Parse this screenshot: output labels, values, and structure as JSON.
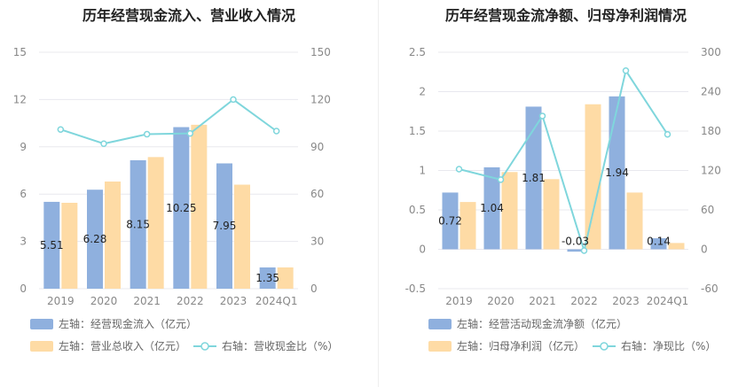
{
  "colors": {
    "bar_blue": "#8fb0de",
    "bar_orange": "#fedba5",
    "line_cyan": "#7fd6dc",
    "grid": "#e8e8ee",
    "axis_text": "#888888"
  },
  "chart_data": [
    {
      "type": "bar",
      "title": "历年经营现金流入、营业收入情况",
      "categories": [
        "2019",
        "2020",
        "2021",
        "2022",
        "2023",
        "2024Q1"
      ],
      "left_axis": {
        "ylim": [
          0,
          15
        ],
        "ticks": [
          "0",
          "3",
          "6",
          "9",
          "12",
          "15"
        ]
      },
      "right_axis": {
        "ylim": [
          0,
          150
        ],
        "ticks": [
          "0",
          "30",
          "60",
          "90",
          "120",
          "150"
        ]
      },
      "series": [
        {
          "name": "左轴：经营现金流入（亿元）",
          "type": "bar",
          "axis": "left",
          "values": [
            5.51,
            6.28,
            8.15,
            10.25,
            7.95,
            1.35
          ],
          "labels": [
            "5.51",
            "6.28",
            "8.15",
            "10.25",
            "7.95",
            "1.35"
          ]
        },
        {
          "name": "左轴：营业总收入（亿元）",
          "type": "bar",
          "axis": "left",
          "values": [
            5.45,
            6.8,
            8.35,
            10.4,
            6.6,
            1.35
          ]
        },
        {
          "name": "右轴：营收现金比（%）",
          "type": "line",
          "axis": "right",
          "values": [
            101,
            92,
            98,
            98.5,
            120,
            100
          ]
        }
      ],
      "grid": true,
      "legend_position": "bottom"
    },
    {
      "type": "bar",
      "title": "历年经营现金流净额、归母净利润情况",
      "categories": [
        "2019",
        "2020",
        "2021",
        "2022",
        "2023",
        "2024Q1"
      ],
      "left_axis": {
        "ylim": [
          -0.5,
          2.5
        ],
        "ticks": [
          "-0.5",
          "0",
          "0.5",
          "1",
          "1.5",
          "2",
          "2.5"
        ]
      },
      "right_axis": {
        "ylim": [
          -60,
          300
        ],
        "ticks": [
          "-60",
          "0",
          "60",
          "120",
          "180",
          "240",
          "300"
        ]
      },
      "series": [
        {
          "name": "左轴：经营活动现金流净额（亿元）",
          "type": "bar",
          "axis": "left",
          "values": [
            0.72,
            1.04,
            1.81,
            -0.03,
            1.94,
            0.14
          ],
          "labels": [
            "0.72",
            "1.04",
            "1.81",
            "-0.03",
            "1.94",
            "0.14"
          ]
        },
        {
          "name": "左轴：归母净利润（亿元）",
          "type": "bar",
          "axis": "left",
          "values": [
            0.6,
            0.98,
            0.89,
            1.84,
            0.72,
            0.08
          ]
        },
        {
          "name": "右轴：净现比（%）",
          "type": "line",
          "axis": "right",
          "values": [
            122,
            106,
            203,
            -2,
            272,
            175
          ]
        }
      ],
      "grid": true,
      "legend_position": "bottom"
    }
  ]
}
